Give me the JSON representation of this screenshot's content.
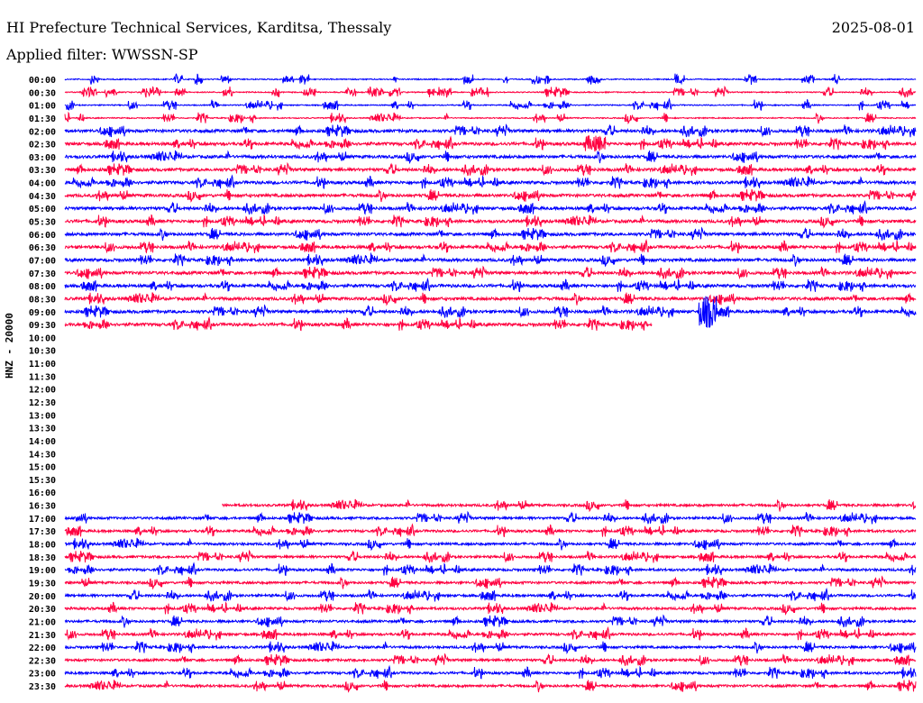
{
  "header": {
    "title": "HI Prefecture Technical Services, Karditsa, Thessaly",
    "filter": "Applied filter: WWSSN-SP",
    "date": "2025-08-01"
  },
  "chart_data": {
    "type": "line",
    "title": "HI Prefecture Technical Services, Karditsa, Thessaly",
    "subtitle": "Applied filter: WWSSN-SP",
    "ylabel": "HNZ - 20000",
    "xlabel": "",
    "row_minutes": 30,
    "colors": {
      "even": "#0000ff",
      "odd": "#ff0040"
    },
    "rows": [
      {
        "label": "00:00",
        "coverage": [
          0,
          1
        ]
      },
      {
        "label": "00:30",
        "coverage": [
          0,
          1
        ]
      },
      {
        "label": "01:00",
        "coverage": [
          0,
          1
        ]
      },
      {
        "label": "01:30",
        "coverage": [
          0,
          1
        ]
      },
      {
        "label": "02:00",
        "coverage": [
          0,
          1
        ]
      },
      {
        "label": "02:30",
        "coverage": [
          0,
          1
        ]
      },
      {
        "label": "03:00",
        "coverage": [
          0,
          1
        ]
      },
      {
        "label": "03:30",
        "coverage": [
          0,
          1
        ]
      },
      {
        "label": "04:00",
        "coverage": [
          0,
          1
        ]
      },
      {
        "label": "04:30",
        "coverage": [
          0,
          1
        ]
      },
      {
        "label": "05:00",
        "coverage": [
          0,
          1
        ]
      },
      {
        "label": "05:30",
        "coverage": [
          0,
          1
        ]
      },
      {
        "label": "06:00",
        "coverage": [
          0,
          1
        ]
      },
      {
        "label": "06:30",
        "coverage": [
          0,
          1
        ]
      },
      {
        "label": "07:00",
        "coverage": [
          0,
          1
        ]
      },
      {
        "label": "07:30",
        "coverage": [
          0,
          1
        ]
      },
      {
        "label": "08:00",
        "coverage": [
          0,
          1
        ]
      },
      {
        "label": "08:30",
        "coverage": [
          0,
          1
        ]
      },
      {
        "label": "09:00",
        "coverage": [
          0,
          1
        ]
      },
      {
        "label": "09:30",
        "coverage": [
          0,
          0.69
        ]
      },
      {
        "label": "10:00",
        "coverage": null
      },
      {
        "label": "10:30",
        "coverage": null
      },
      {
        "label": "11:00",
        "coverage": null
      },
      {
        "label": "11:30",
        "coverage": null
      },
      {
        "label": "12:00",
        "coverage": null
      },
      {
        "label": "12:30",
        "coverage": null
      },
      {
        "label": "13:00",
        "coverage": null
      },
      {
        "label": "13:30",
        "coverage": null
      },
      {
        "label": "14:00",
        "coverage": null
      },
      {
        "label": "14:30",
        "coverage": null
      },
      {
        "label": "15:00",
        "coverage": null
      },
      {
        "label": "15:30",
        "coverage": null
      },
      {
        "label": "16:00",
        "coverage": null
      },
      {
        "label": "16:30",
        "coverage": [
          0.185,
          1
        ]
      },
      {
        "label": "17:00",
        "coverage": [
          0,
          1
        ]
      },
      {
        "label": "17:30",
        "coverage": [
          0,
          1
        ]
      },
      {
        "label": "18:00",
        "coverage": [
          0,
          1
        ]
      },
      {
        "label": "18:30",
        "coverage": [
          0,
          1
        ]
      },
      {
        "label": "19:00",
        "coverage": [
          0,
          1
        ]
      },
      {
        "label": "19:30",
        "coverage": [
          0,
          1
        ]
      },
      {
        "label": "20:00",
        "coverage": [
          0,
          1
        ]
      },
      {
        "label": "20:30",
        "coverage": [
          0,
          1
        ]
      },
      {
        "label": "21:00",
        "coverage": [
          0,
          1
        ]
      },
      {
        "label": "21:30",
        "coverage": [
          0,
          1
        ]
      },
      {
        "label": "22:00",
        "coverage": [
          0,
          1
        ]
      },
      {
        "label": "22:30",
        "coverage": [
          0,
          1
        ]
      },
      {
        "label": "23:00",
        "coverage": [
          0,
          1
        ]
      },
      {
        "label": "23:30",
        "coverage": [
          0,
          1
        ]
      }
    ]
  }
}
